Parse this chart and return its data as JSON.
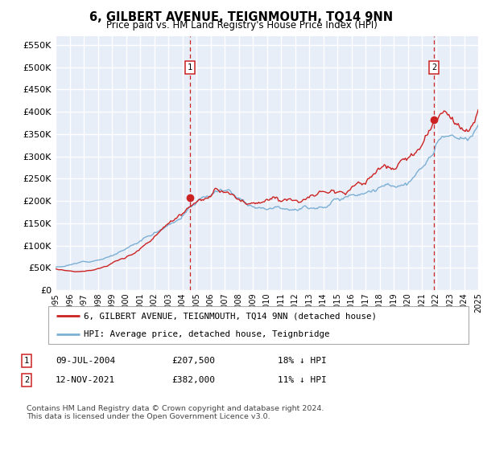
{
  "title": "6, GILBERT AVENUE, TEIGNMOUTH, TQ14 9NN",
  "subtitle": "Price paid vs. HM Land Registry's House Price Index (HPI)",
  "yticks": [
    0,
    50000,
    100000,
    150000,
    200000,
    250000,
    300000,
    350000,
    400000,
    450000,
    500000,
    550000
  ],
  "ytick_labels": [
    "£0",
    "£50K",
    "£100K",
    "£150K",
    "£200K",
    "£250K",
    "£300K",
    "£350K",
    "£400K",
    "£450K",
    "£500K",
    "£550K"
  ],
  "xtick_years": [
    1995,
    1996,
    1997,
    1998,
    1999,
    2000,
    2001,
    2002,
    2003,
    2004,
    2005,
    2006,
    2007,
    2008,
    2009,
    2010,
    2011,
    2012,
    2013,
    2014,
    2015,
    2016,
    2017,
    2018,
    2019,
    2020,
    2021,
    2022,
    2023,
    2024,
    2025
  ],
  "hpi_color": "#7bafd4",
  "price_color": "#cc2222",
  "sale1_x": 2004.52,
  "sale1_y": 207500,
  "sale2_x": 2021.87,
  "sale2_y": 382000,
  "legend_line1": "6, GILBERT AVENUE, TEIGNMOUTH, TQ14 9NN (detached house)",
  "legend_line2": "HPI: Average price, detached house, Teignbridge",
  "table_row1": [
    "1",
    "09-JUL-2004",
    "£207,500",
    "18% ↓ HPI"
  ],
  "table_row2": [
    "2",
    "12-NOV-2021",
    "£382,000",
    "11% ↓ HPI"
  ],
  "footer1": "Contains HM Land Registry data © Crown copyright and database right 2024.",
  "footer2": "This data is licensed under the Open Government Licence v3.0.",
  "background_color": "#e8eef8",
  "grid_color": "#ffffff",
  "dashed_line_color": "#cc2222",
  "ymin": 0,
  "ymax": 570000,
  "xmin": 1995,
  "xmax": 2025
}
